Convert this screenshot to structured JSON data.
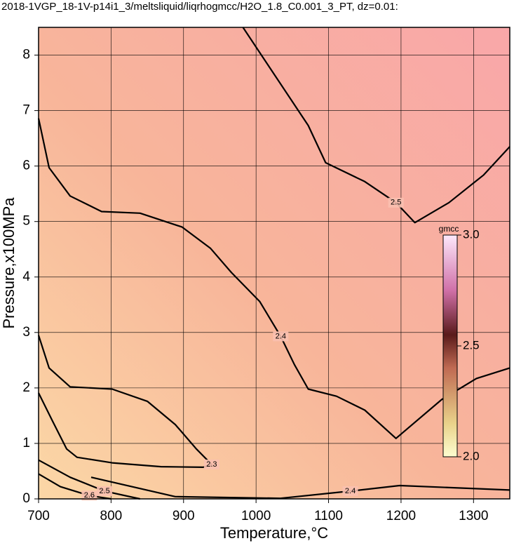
{
  "chart_data": {
    "type": "contour",
    "title": "2018-1VGP_18-1V-p14i1_3/meltsliquid/liqrhogmcc/H2O_1.8_C0.001_3_PT, dz=0.01:",
    "xlabel": "Temperature,°C",
    "ylabel": "Pressure,x100MPa",
    "xlim": [
      700,
      1350
    ],
    "ylim": [
      0,
      8.5
    ],
    "xticks": [
      700,
      800,
      900,
      1000,
      1100,
      1200,
      1300
    ],
    "yticks": [
      0,
      1,
      2,
      3,
      4,
      5,
      6,
      7,
      8
    ],
    "grid": true,
    "contours": [
      {
        "level": 2.5,
        "x": [
          982,
          1072,
          1096,
          1150,
          1193,
          1219,
          1266,
          1314,
          1350
        ],
        "y": [
          8.5,
          6.73,
          6.06,
          5.72,
          5.34,
          4.98,
          5.34,
          5.84,
          6.35
        ]
      },
      {
        "level": 2.4,
        "x": [
          700,
          714.5,
          743.5,
          787,
          840,
          898,
          937,
          966,
          1005,
          1034,
          1053,
          1072,
          1111,
          1150,
          1193,
          1256,
          1304,
          1350
        ],
        "y": [
          6.86,
          5.97,
          5.46,
          5.18,
          5.15,
          4.9,
          4.52,
          4.08,
          3.56,
          2.93,
          2.42,
          1.98,
          1.85,
          1.6,
          1.09,
          1.79,
          2.17,
          2.36
        ]
      },
      {
        "level": 2.3,
        "x": [
          700,
          714.5,
          743.5,
          801.5,
          850,
          888.6,
          917.6,
          938.8,
          927,
          869,
          801.5,
          753,
          738.7,
          719,
          700
        ],
        "y": [
          2.95,
          2.36,
          2.02,
          1.98,
          1.76,
          1.34,
          0.9,
          0.62,
          0.57,
          0.58,
          0.65,
          0.75,
          0.9,
          1.41,
          1.91
        ]
      },
      {
        "level": 2.4,
        "x": [
          772.5,
          888.6,
          1033.6,
          1130,
          1198,
          1350
        ],
        "y": [
          0.39,
          0.04,
          0.01,
          0.14,
          0.24,
          0.16
        ]
      },
      {
        "level": 2.5,
        "x": [
          700,
          743.5,
          791,
          840
        ],
        "y": [
          0.7,
          0.39,
          0.14,
          0
        ]
      },
      {
        "level": 2.6,
        "x": [
          700,
          730,
          770,
          800
        ],
        "y": [
          0.45,
          0.22,
          0.06,
          0
        ]
      }
    ],
    "colorbar": {
      "label": "gmcc",
      "lim": [
        2,
        3
      ],
      "ticks": [
        {
          "value": 2,
          "label": "2.0"
        },
        {
          "value": 2.5,
          "label": "2.5"
        },
        {
          "value": 3,
          "label": "3.0"
        }
      ]
    }
  }
}
